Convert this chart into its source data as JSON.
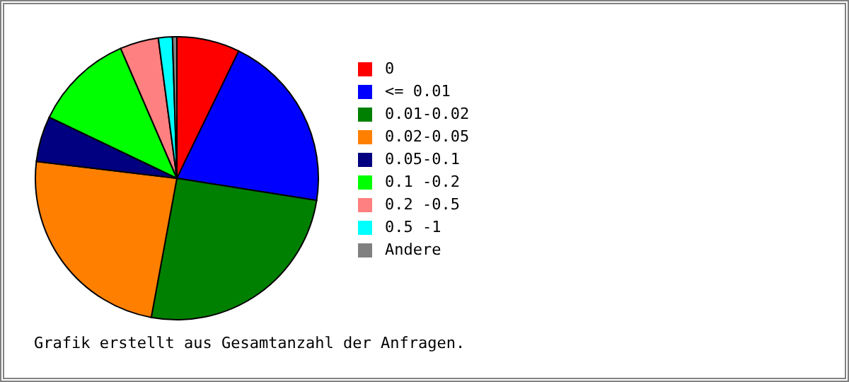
{
  "chart_data": {
    "type": "pie",
    "categories": [
      "0",
      "<= 0.01",
      "0.01-0.02",
      "0.02-0.05",
      "0.05-0.1",
      "0.1 -0.2",
      "0.2 -0.5",
      "0.5 -1",
      "Andere"
    ],
    "values": [
      7.2,
      20.3,
      25.4,
      24.0,
      5.2,
      11.4,
      4.4,
      1.6,
      0.5
    ],
    "colors": [
      "#ff0000",
      "#0000ff",
      "#008000",
      "#ff8000",
      "#000080",
      "#00ff00",
      "#ff8080",
      "#00ffff",
      "#808080"
    ],
    "legend": "right",
    "annotations": [
      "Grafik erstellt aus Gesamtanzahl der Anfragen."
    ]
  }
}
